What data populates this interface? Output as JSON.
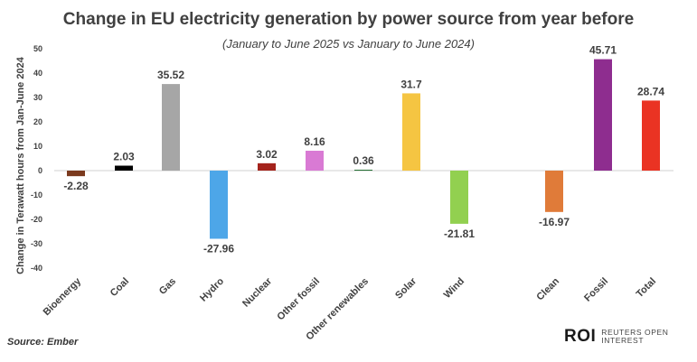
{
  "chart_data": {
    "type": "bar",
    "title": "Change in EU electricity generation by power source from year before",
    "subtitle": "(January to June 2025 vs January to June 2024)",
    "xlabel": "",
    "ylabel": "Change in Terawatt hours from Jan-June 2024",
    "ylim": [
      -40,
      50
    ],
    "yticks": [
      -40,
      -30,
      -20,
      -10,
      0,
      10,
      20,
      30,
      40,
      50
    ],
    "categories": [
      "Bioenergy",
      "Coal",
      "Gas",
      "Hydro",
      "Nuclear",
      "Other fossil",
      "Other renewables",
      "Solar",
      "Wind",
      "Clean",
      "Fossil",
      "Total"
    ],
    "values": [
      -2.28,
      2.03,
      35.52,
      -27.96,
      3.02,
      8.16,
      0.36,
      31.7,
      -21.81,
      -16.97,
      45.71,
      28.74
    ],
    "value_labels": [
      "-2.28",
      "2.03",
      "35.52",
      "-27.96",
      "3.02",
      "8.16",
      "0.36",
      "31.7",
      "-21.81",
      "-16.97",
      "45.71",
      "28.74"
    ],
    "colors": [
      "#7b3a1e",
      "#000000",
      "#a6a6a6",
      "#4da6e8",
      "#a4231c",
      "#d97ad4",
      "#1f6b2e",
      "#f5c542",
      "#92d050",
      "#e07b39",
      "#8e2d8f",
      "#ea3323"
    ],
    "grid": false,
    "legend": "none"
  },
  "source": "Source: Ember",
  "logo": {
    "mark": "ROI",
    "text": "REUTERS OPEN INTEREST"
  }
}
